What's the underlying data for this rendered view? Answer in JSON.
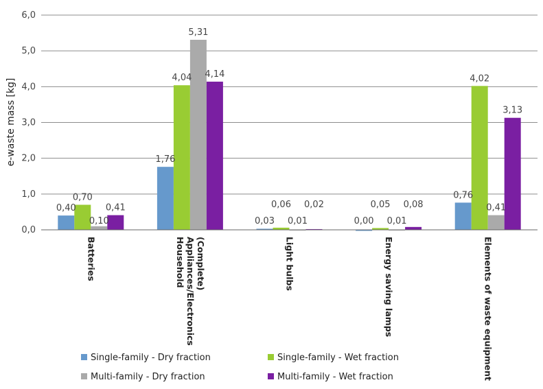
{
  "chart_data": {
    "type": "bar",
    "ylabel": "e-waste mass [kg]",
    "ylim": [
      0,
      6
    ],
    "yticks": [
      "0,0",
      "1,0",
      "2,0",
      "3,0",
      "4,0",
      "5,0",
      "6,0"
    ],
    "grid": true,
    "legend_position": "bottom",
    "categories": [
      [
        "Batteries"
      ],
      [
        "Household",
        "Appliances/Electronics",
        "(Complete)"
      ],
      [
        "Light bulbs"
      ],
      [
        "Energy saving lamps"
      ],
      [
        "Elements of waste equipment"
      ]
    ],
    "series": [
      {
        "name": "Single-family - Dry fraction",
        "color": "#6699cc",
        "values": [
          0.4,
          1.76,
          0.03,
          0.0,
          0.76
        ],
        "labels": [
          "0,40",
          "1,76",
          "0,03",
          "0,00",
          "0,76"
        ]
      },
      {
        "name": "Single-family - Wet fraction",
        "color": "#99cc33",
        "values": [
          0.7,
          4.04,
          0.06,
          0.05,
          4.02
        ],
        "labels": [
          "0,70",
          "4,04",
          "0,06",
          "0,05",
          "4,02"
        ]
      },
      {
        "name": "Multi-family - Dry fraction",
        "color": "#aaaaaa",
        "values": [
          0.1,
          5.31,
          0.01,
          0.01,
          0.41
        ],
        "labels": [
          "0,10",
          "5,31",
          "0,01",
          "0,01",
          "0,41"
        ]
      },
      {
        "name": "Multi-family - Wet fraction",
        "color": "#7a1fa2",
        "values": [
          0.41,
          4.14,
          0.02,
          0.08,
          3.13
        ],
        "labels": [
          "0,41",
          "4,14",
          "0,02",
          "0,08",
          "3,13"
        ]
      }
    ]
  }
}
